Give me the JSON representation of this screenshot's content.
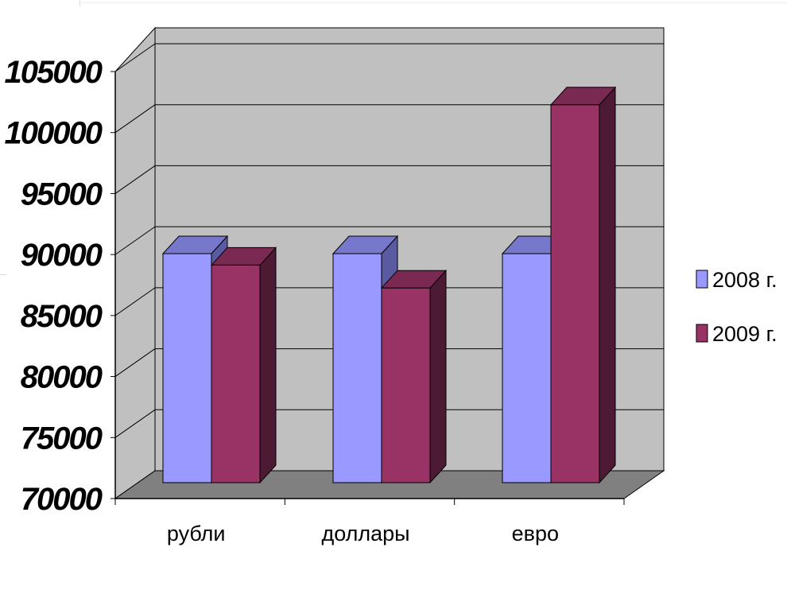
{
  "chart_data": {
    "type": "bar",
    "categories": [
      "рубли",
      "доллары",
      "евро"
    ],
    "series": [
      {
        "name": "2008 г.",
        "values": [
          90000,
          90000,
          90000
        ]
      },
      {
        "name": "2009 г.",
        "values": [
          89000,
          87000,
          103000
        ]
      }
    ],
    "ylim": [
      70000,
      105000
    ],
    "yticks": [
      "70000",
      "75000",
      "80000",
      "85000",
      "90000",
      "95000",
      "100000",
      "105000"
    ],
    "grid": true,
    "legend_position": "right",
    "three_d": true
  },
  "colors": {
    "series_2008_front": "#9999ff",
    "series_2008_top": "#7777cc",
    "series_2008_side": "#5a5aa0",
    "series_2009_front": "#993366",
    "series_2009_top": "#7a2952",
    "series_2009_side": "#4d1a33",
    "back_wall": "#c0c0c0",
    "side_wall": "#c0c0c0",
    "floor": "#808080"
  }
}
